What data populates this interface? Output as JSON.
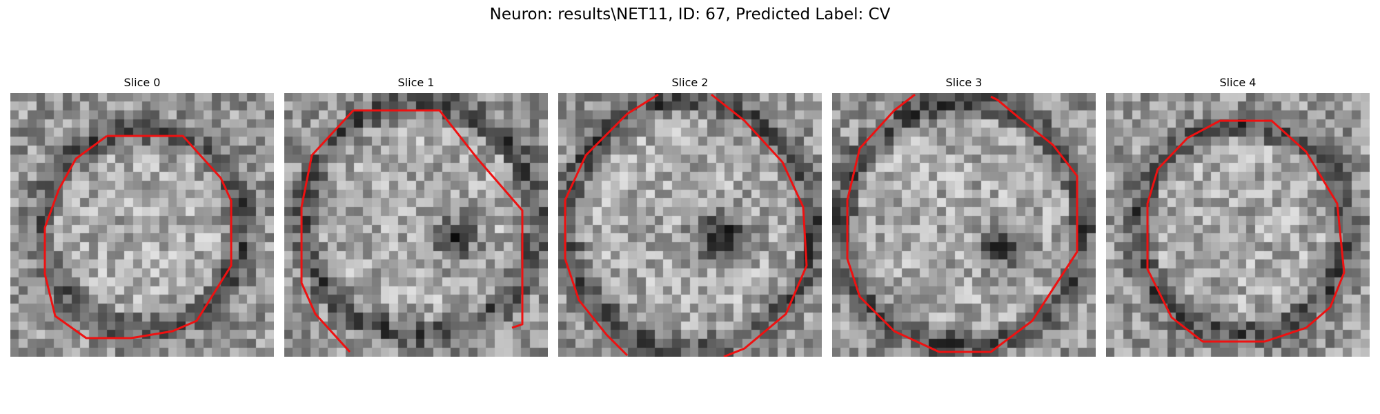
{
  "figure": {
    "title": "Neuron: results\\NET11, ID: 67, Predicted Label: CV"
  },
  "panels": [
    {
      "title": "Slice 0"
    },
    {
      "title": "Slice 1"
    },
    {
      "title": "Slice 2"
    },
    {
      "title": "Slice 3"
    },
    {
      "title": "Slice 4"
    }
  ],
  "colors": {
    "contour": "#ee1111",
    "background": "#ffffff"
  }
}
